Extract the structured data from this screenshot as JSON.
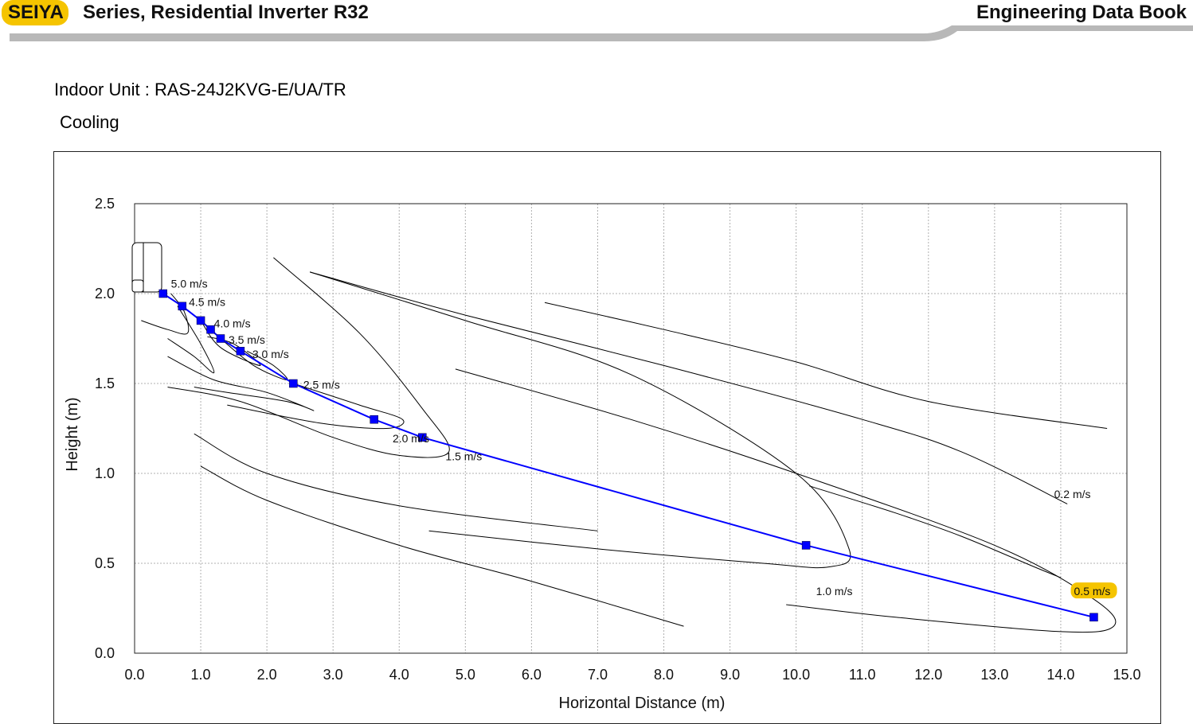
{
  "header": {
    "brand": "SEIYA",
    "series_title": "Series, Residential Inverter R32",
    "book_title": "Engineering Data Book"
  },
  "indoor_unit_label": "Indoor Unit : RAS-24J2KVG-E/UA/TR",
  "mode": "Cooling",
  "colors": {
    "brand_yellow": "#f5c400",
    "header_rule_gray": "#b8b8b8",
    "trajectory_blue": "#0000ff",
    "grid_gray": "#b0b0b0",
    "contour_black": "#000000",
    "label_highlight": "#f5c400"
  },
  "chart_data": {
    "type": "line",
    "xlabel": "Horizontal Distance (m)",
    "ylabel": "Height (m)",
    "xlim": [
      0,
      15
    ],
    "ylim": [
      0,
      2.5
    ],
    "x_ticks": [
      "0.0",
      "1.0",
      "2.0",
      "3.0",
      "4.0",
      "5.0",
      "6.0",
      "7.0",
      "8.0",
      "9.0",
      "10.0",
      "11.0",
      "12.0",
      "13.0",
      "14.0",
      "15.0"
    ],
    "y_ticks": [
      "0.0",
      "0.5",
      "1.0",
      "1.5",
      "2.0",
      "2.5"
    ],
    "grid": true,
    "series": [
      {
        "x": [
          0.43,
          0.72,
          1.0,
          1.15,
          1.3,
          1.6,
          2.4,
          3.62,
          4.35,
          10.15,
          14.5
        ],
        "y": [
          2.0,
          1.93,
          1.85,
          1.8,
          1.75,
          1.68,
          1.5,
          1.3,
          1.2,
          0.6,
          0.2
        ]
      }
    ],
    "velocity_labels": [
      {
        "text": "5.0 m/s",
        "x": 0.55,
        "y": 2.05,
        "highlight": false
      },
      {
        "text": "4.5 m/s",
        "x": 0.82,
        "y": 1.95,
        "highlight": false
      },
      {
        "text": "4.0 m/s",
        "x": 1.2,
        "y": 1.83,
        "highlight": false
      },
      {
        "text": "3.5 m/s",
        "x": 1.42,
        "y": 1.74,
        "highlight": false
      },
      {
        "text": "3.0 m/s",
        "x": 1.78,
        "y": 1.66,
        "highlight": false
      },
      {
        "text": "2.5 m/s",
        "x": 2.55,
        "y": 1.49,
        "highlight": false
      },
      {
        "text": "2.0 m/s",
        "x": 3.9,
        "y": 1.19,
        "highlight": false
      },
      {
        "text": "1.5 m/s",
        "x": 4.7,
        "y": 1.09,
        "highlight": false
      },
      {
        "text": "1.0 m/s",
        "x": 10.3,
        "y": 0.34,
        "highlight": false
      },
      {
        "text": "0.5 m/s",
        "x": 14.2,
        "y": 0.34,
        "highlight": true
      },
      {
        "text": "0.2 m/s",
        "x": 13.9,
        "y": 0.88,
        "highlight": false
      }
    ],
    "contours": [
      [
        [
          0.55,
          2.0
        ],
        [
          0.75,
          1.9
        ],
        [
          0.8,
          1.78
        ],
        [
          0.5,
          1.8
        ],
        [
          0.1,
          1.85
        ]
      ],
      [
        [
          0.65,
          1.93
        ],
        [
          1.0,
          1.72
        ],
        [
          1.2,
          1.56
        ],
        [
          0.9,
          1.65
        ],
        [
          0.5,
          1.75
        ]
      ],
      [
        [
          1.0,
          1.85
        ],
        [
          1.3,
          1.7
        ],
        [
          1.9,
          1.6
        ],
        [
          1.5,
          1.72
        ],
        [
          1.1,
          1.76
        ]
      ],
      [
        [
          1.3,
          1.75
        ],
        [
          1.8,
          1.6
        ],
        [
          2.3,
          1.52
        ],
        [
          2.1,
          1.6
        ],
        [
          1.7,
          1.68
        ]
      ],
      [
        [
          0.5,
          1.65
        ],
        [
          1.2,
          1.52
        ],
        [
          2.0,
          1.45
        ],
        [
          2.7,
          1.35
        ],
        [
          2.3,
          1.4
        ],
        [
          1.4,
          1.45
        ],
        [
          0.9,
          1.48
        ]
      ],
      [
        [
          2.4,
          1.5
        ],
        [
          3.4,
          1.38
        ],
        [
          4.05,
          1.3
        ],
        [
          3.8,
          1.25
        ],
        [
          2.8,
          1.28
        ],
        [
          1.4,
          1.38
        ]
      ],
      [
        [
          2.1,
          2.2
        ],
        [
          3.4,
          1.78
        ],
        [
          4.35,
          1.36
        ],
        [
          4.75,
          1.12
        ],
        [
          4.0,
          1.1
        ],
        [
          3.0,
          1.2
        ],
        [
          1.6,
          1.4
        ],
        [
          0.5,
          1.48
        ]
      ],
      [
        [
          2.65,
          2.12
        ],
        [
          5.0,
          1.85
        ],
        [
          7.5,
          1.55
        ],
        [
          10.0,
          1.0
        ],
        [
          10.8,
          0.58
        ],
        [
          10.5,
          0.48
        ],
        [
          9.5,
          0.5
        ],
        [
          7.0,
          0.58
        ],
        [
          4.45,
          0.68
        ]
      ],
      [
        [
          0.9,
          1.22
        ],
        [
          2.0,
          1.0
        ],
        [
          4.0,
          0.82
        ],
        [
          7.0,
          0.68
        ]
      ],
      [
        [
          4.85,
          1.58
        ],
        [
          7.5,
          1.3
        ],
        [
          10.0,
          1.0
        ],
        [
          13.0,
          0.6
        ],
        [
          14.5,
          0.3
        ],
        [
          14.8,
          0.15
        ],
        [
          14.0,
          0.12
        ],
        [
          11.5,
          0.2
        ],
        [
          9.85,
          0.27
        ]
      ],
      [
        [
          1.0,
          1.04
        ],
        [
          2.0,
          0.85
        ],
        [
          4.0,
          0.6
        ],
        [
          6.0,
          0.4
        ],
        [
          8.3,
          0.15
        ]
      ],
      [
        [
          6.2,
          1.95
        ],
        [
          8.0,
          1.8
        ],
        [
          10.0,
          1.62
        ],
        [
          12.0,
          1.4
        ],
        [
          14.7,
          1.25
        ]
      ],
      [
        [
          10.2,
          0.93
        ],
        [
          11.5,
          0.78
        ],
        [
          12.5,
          0.65
        ],
        [
          13.6,
          0.48
        ],
        [
          14.0,
          0.42
        ]
      ],
      [
        [
          2.65,
          2.12
        ],
        [
          5.0,
          1.88
        ],
        [
          8.0,
          1.6
        ],
        [
          11.0,
          1.3
        ],
        [
          12.5,
          1.12
        ],
        [
          14.1,
          0.83
        ]
      ]
    ]
  }
}
